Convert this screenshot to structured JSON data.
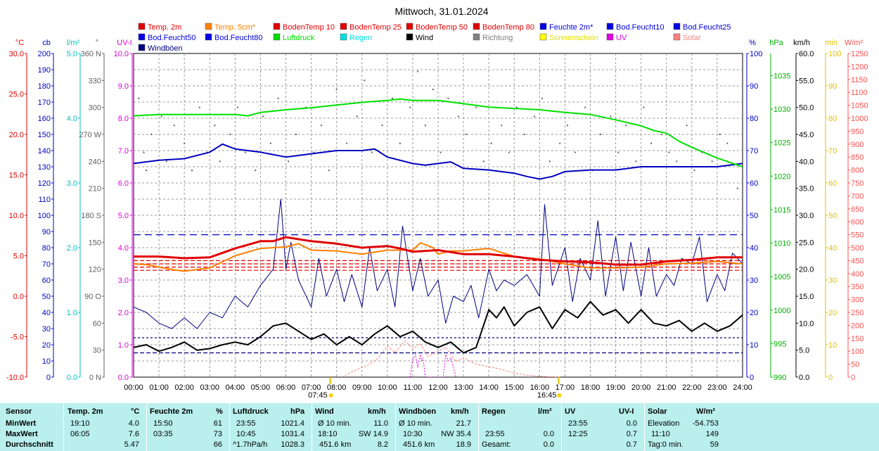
{
  "title": "Mittwoch, 31.01.2024",
  "legend": [
    {
      "label": "Temp. 2m",
      "color": "#e00000"
    },
    {
      "label": "Temp. 5cm*",
      "color": "#ff8000"
    },
    {
      "label": "BodenTemp 10",
      "color": "#e00000"
    },
    {
      "label": "BodenTemp 25",
      "color": "#e00000"
    },
    {
      "label": "BodenTemp 50",
      "color": "#e00000"
    },
    {
      "label": "BodenTemp 80",
      "color": "#e00000"
    },
    {
      "label": "Feuchte 2m*",
      "color": "#0000e0"
    },
    {
      "label": "Bod.Feucht10",
      "color": "#0000e0"
    },
    {
      "label": "Bod.Feucht25",
      "color": "#0000e0"
    },
    {
      "label": "Bod.Feucht50",
      "color": "#0000e0"
    },
    {
      "label": "Bod.Feucht80",
      "color": "#0000e0"
    },
    {
      "label": "Luftdruck",
      "color": "#00dd00"
    },
    {
      "label": "Regen",
      "color": "#00e0e0"
    },
    {
      "label": "Wind",
      "color": "#000000"
    },
    {
      "label": "Richtung",
      "color": "#808080"
    },
    {
      "label": "Sonnenschein",
      "color": "#ffff00"
    },
    {
      "label": "UV",
      "color": "#e000e0"
    },
    {
      "label": "Solar",
      "color": "#ff8080"
    },
    {
      "label": "Windböen",
      "color": "#000080"
    }
  ],
  "axes": {
    "temp": {
      "unit": "°C",
      "color": "#e00000",
      "ticks": [
        "30.0",
        "25.0",
        "20.0",
        "15.0",
        "10.0",
        "5.0",
        "0.0",
        "-5.0",
        "-10.0"
      ]
    },
    "cb": {
      "unit": "cb",
      "color": "#0000c0",
      "ticks": [
        "200",
        "190",
        "180",
        "170",
        "160",
        "150",
        "140",
        "130",
        "120",
        "110",
        "100",
        "90",
        "80",
        "70",
        "60",
        "50",
        "40",
        "30",
        "20",
        "10",
        "0"
      ]
    },
    "rain": {
      "unit": "l/m²",
      "color": "#00c0c0",
      "ticks": [
        "5.0",
        "4.0",
        "3.0",
        "2.0",
        "1.0",
        "0.0"
      ]
    },
    "dir": {
      "unit": "°",
      "color": "#606060",
      "ticks": [
        "360 N",
        "330",
        "300",
        "270 W",
        "240",
        "210",
        "180 S",
        "150",
        "120",
        "90 O",
        "60",
        "30",
        "0 N"
      ]
    },
    "uv": {
      "unit": "UV-I",
      "color": "#e000e0",
      "ticks": [
        "10.0",
        "9.0",
        "8.0",
        "7.0",
        "6.0",
        "5.0",
        "4.0",
        "3.0",
        "2.0",
        "1.0",
        "0.0"
      ]
    },
    "hum": {
      "unit": "%",
      "color": "#0000c0",
      "ticks": [
        "100",
        "90",
        "80",
        "70",
        "60",
        "50",
        "40",
        "30",
        "20",
        "10",
        "0"
      ]
    },
    "press": {
      "unit": "hPa",
      "color": "#00b000",
      "ticks": [
        "1035",
        "1030",
        "1025",
        "1020",
        "1015",
        "1010",
        "1005",
        "1000",
        "995",
        "990"
      ]
    },
    "wind": {
      "unit": "km/h",
      "color": "#000000",
      "ticks": [
        "60.0",
        "55.0",
        "50.0",
        "45.0",
        "40.0",
        "35.0",
        "30.0",
        "25.0",
        "20.0",
        "15.0",
        "10.0",
        "5.0",
        "0.0"
      ]
    },
    "min": {
      "unit": "min",
      "color": "#e0c000",
      "ticks": [
        "100",
        "90",
        "80",
        "70",
        "60",
        "50",
        "40",
        "30",
        "20",
        "10",
        "0"
      ]
    },
    "solar": {
      "unit": "W/m²",
      "color": "#ff5050",
      "ticks": [
        "1250",
        "1200",
        "1150",
        "1100",
        "1050",
        "1000",
        "950",
        "900",
        "850",
        "800",
        "750",
        "700",
        "650",
        "600",
        "550",
        "500",
        "450",
        "400",
        "350",
        "300",
        "250",
        "200",
        "150",
        "100",
        "50",
        "0"
      ]
    },
    "time": {
      "ticks": [
        "00:00",
        "01:00",
        "02:00",
        "03:00",
        "04:00",
        "05:00",
        "06:00",
        "07:00",
        "08:00",
        "09:00",
        "10:00",
        "11:00",
        "12:00",
        "13:00",
        "14:00",
        "15:00",
        "16:00",
        "17:00",
        "18:00",
        "19:00",
        "20:00",
        "21:00",
        "22:00",
        "23:00",
        "24:00"
      ]
    }
  },
  "sun": {
    "sunrise": "07:45",
    "sunset": "16:45"
  },
  "chart_data": {
    "type": "line",
    "title": "Mittwoch, 31.01.2024",
    "x_unit": "Uhrzeit",
    "xlim": [
      "00:00",
      "24:00"
    ],
    "series": [
      {
        "name": "Temp. 2m",
        "axis": "temp",
        "color": "#e00000",
        "width": 3,
        "x": [
          0,
          1,
          2,
          3,
          4,
          5,
          5.5,
          6,
          7,
          8,
          9,
          10,
          10.5,
          11,
          12,
          13,
          14,
          15,
          16,
          17,
          18,
          19,
          20,
          21,
          22,
          23,
          24
        ],
        "y": [
          4.9,
          4.9,
          4.7,
          4.8,
          5.9,
          6.8,
          6.8,
          7.3,
          6.8,
          6.5,
          6.0,
          6.2,
          5.9,
          5.5,
          5.7,
          5.2,
          5.2,
          4.9,
          4.5,
          4.3,
          4.2,
          3.9,
          3.9,
          4.3,
          4.5,
          4.8,
          4.8
        ]
      },
      {
        "name": "Temp. 5cm*",
        "axis": "temp",
        "color": "#ff8000",
        "width": 2,
        "x": [
          0,
          0.5,
          1,
          1.5,
          2,
          3,
          4,
          5,
          6,
          6.5,
          7,
          8,
          9,
          10,
          11,
          11.3,
          11.8,
          12,
          12.5,
          13,
          14,
          15,
          16,
          17,
          18,
          19,
          20,
          21,
          22,
          23,
          24
        ],
        "y": [
          4.0,
          3.9,
          3.6,
          3.3,
          3.1,
          3.5,
          5.0,
          5.9,
          6.1,
          6.5,
          5.7,
          5.6,
          5.2,
          5.7,
          5.7,
          6.6,
          6.0,
          5.2,
          5.6,
          5.6,
          5.9,
          4.9,
          4.6,
          4.0,
          3.5,
          3.5,
          3.6,
          4.0,
          4.1,
          4.3,
          4.0
        ]
      },
      {
        "name": "Luftdruck",
        "axis": "press",
        "color": "#00e000",
        "width": 2,
        "x": [
          0,
          1,
          2,
          3,
          4,
          4.5,
          5,
          6,
          7,
          8,
          9,
          10,
          10.5,
          11,
          12,
          13,
          14,
          15,
          16,
          17,
          18,
          19,
          20,
          20.5,
          21,
          21.5,
          22,
          23,
          24
        ],
        "y": [
          1029.0,
          1029.2,
          1029.2,
          1029.2,
          1029.2,
          1029.0,
          1029.5,
          1029.9,
          1030.2,
          1030.6,
          1031.0,
          1031.3,
          1031.5,
          1031.3,
          1031.3,
          1030.8,
          1030.3,
          1030.1,
          1029.9,
          1029.5,
          1029.2,
          1028.4,
          1027.5,
          1026.8,
          1026.4,
          1025.2,
          1024.3,
          1022.7,
          1021.4
        ]
      },
      {
        "name": "Feuchte 2m*",
        "axis": "hum",
        "color": "#0000c0",
        "width": 2,
        "x": [
          0,
          1,
          2,
          3,
          3.5,
          4,
          5,
          6,
          7,
          8,
          9,
          9.5,
          10,
          11,
          11.5,
          12,
          12.5,
          13,
          14,
          15,
          15.5,
          16,
          16.5,
          17,
          18,
          19,
          20,
          21,
          22,
          23,
          24
        ],
        "y": [
          66,
          67,
          67.5,
          69.5,
          72,
          70.5,
          69.5,
          68,
          69,
          70,
          70,
          70.5,
          68,
          66,
          65.5,
          66,
          66.5,
          64.5,
          64,
          63,
          62,
          61.2,
          62,
          63.5,
          64,
          64,
          65,
          65,
          65,
          65,
          66
        ]
      },
      {
        "name": "Windböen",
        "axis": "wind",
        "color": "#000080",
        "width": 1,
        "x": [
          0,
          0.5,
          1,
          1.5,
          2,
          2.5,
          3,
          3.5,
          4,
          4.5,
          5,
          5.5,
          5.8,
          6,
          6.2,
          6.5,
          7,
          7.3,
          7.6,
          8,
          8.3,
          8.6,
          9,
          9.3,
          9.6,
          10,
          10.3,
          10.6,
          11,
          11.3,
          11.6,
          12,
          12.3,
          12.6,
          13,
          13.3,
          13.6,
          14,
          14.3,
          14.6,
          15,
          15.5,
          16,
          16.2,
          16.5,
          17,
          17.3,
          17.6,
          18,
          18.3,
          18.6,
          19,
          19.3,
          19.6,
          20,
          20.3,
          20.6,
          21,
          21.3,
          21.6,
          22,
          22.3,
          22.6,
          23,
          23.3,
          23.6,
          24
        ],
        "y": [
          13,
          12,
          10,
          9,
          11,
          9,
          12,
          11,
          15,
          13,
          17,
          20,
          33,
          20,
          25,
          18,
          13,
          22,
          15,
          20,
          14,
          19,
          13,
          24,
          16,
          20,
          13,
          28,
          16,
          22,
          15,
          18,
          10,
          15,
          14,
          17,
          11,
          20,
          16,
          18,
          17,
          19,
          15,
          32,
          17,
          24,
          14,
          22,
          18,
          29,
          15,
          26,
          16,
          25,
          15,
          24,
          15,
          19,
          17,
          22,
          21,
          26,
          14,
          19,
          16,
          23,
          21
        ]
      },
      {
        "name": "Wind",
        "axis": "wind",
        "color": "#000000",
        "width": 2,
        "x": [
          0,
          0.5,
          1,
          1.5,
          2,
          2.5,
          3,
          3.5,
          4,
          4.5,
          5,
          5.5,
          6,
          6.5,
          7,
          7.5,
          8,
          8.5,
          9,
          9.5,
          10,
          10.5,
          11,
          11.5,
          12,
          12.5,
          13,
          13.5,
          14,
          14.3,
          14.6,
          15,
          15.5,
          16,
          16.5,
          17,
          17.5,
          18,
          18.5,
          19,
          19.5,
          20,
          20.5,
          21,
          21.5,
          22,
          22.5,
          23,
          23.5,
          24
        ],
        "y": [
          5.5,
          6.0,
          4.8,
          5.5,
          6.5,
          5.0,
          5.3,
          6.0,
          6.5,
          6.0,
          7.5,
          9.5,
          10.0,
          8.5,
          7.0,
          8.0,
          6.0,
          7.5,
          6.0,
          8.0,
          9.5,
          7.5,
          8.5,
          6.5,
          5.5,
          6.5,
          4.5,
          5.5,
          12.5,
          11.0,
          13.0,
          9.5,
          12.0,
          13.0,
          9.0,
          12.5,
          11.0,
          14.0,
          11.5,
          12.5,
          10.0,
          12.5,
          10.0,
          9.5,
          10.5,
          8.5,
          10.0,
          8.5,
          9.5,
          11.5
        ]
      },
      {
        "name": "Solar",
        "axis": "solar",
        "color": "#ff8080",
        "width": 1,
        "dash": "3,2",
        "x": [
          8.2,
          8.7,
          9.2,
          9.6,
          10,
          10.3,
          10.7,
          11,
          11.3,
          11.6,
          12,
          12.3,
          12.7,
          13,
          13.5,
          14,
          14.5,
          15,
          15.5,
          16,
          16.5,
          16.8
        ],
        "y": [
          0,
          25,
          45,
          70,
          120,
          95,
          140,
          110,
          130,
          80,
          100,
          115,
          60,
          75,
          50,
          40,
          30,
          15,
          8,
          3,
          1,
          0
        ]
      },
      {
        "name": "UV",
        "axis": "uv",
        "color": "#e000e0",
        "width": 1,
        "dash": "2,2",
        "x": [
          10.9,
          11.0,
          11.1,
          11.2,
          11.3,
          11.35,
          11.4,
          11.5,
          12.2,
          12.3,
          12.4,
          12.5,
          12.6,
          12.7
        ],
        "y": [
          0,
          0.55,
          0.7,
          0.3,
          0.7,
          0.5,
          0.6,
          0,
          0,
          0.7,
          0.5,
          0.6,
          0.3,
          0
        ]
      }
    ],
    "reference_lines": [
      {
        "name": "Bod.Feucht",
        "axis": "hum",
        "value": 44,
        "color": "#0000c0",
        "dash": "10,6"
      },
      {
        "name": "BodenTemp 10",
        "axis": "temp",
        "value": 4.4,
        "color": "#e00000",
        "dash": "6,3"
      },
      {
        "name": "BodenTemp 25",
        "axis": "temp",
        "value": 4.0,
        "color": "#e00000",
        "dash": "6,3"
      },
      {
        "name": "BodenTemp 50",
        "axis": "temp",
        "value": 3.6,
        "color": "#e00000",
        "dash": "6,3"
      },
      {
        "name": "BodenTemp 80",
        "axis": "temp",
        "value": 3.2,
        "color": "#e00000",
        "dash": "6,3"
      },
      {
        "name": "Wind",
        "axis": "wind",
        "value": 7.3,
        "color": "#000080",
        "dash": "3,3"
      },
      {
        "name": "Wind",
        "axis": "wind",
        "value": 4.5,
        "color": "#000080",
        "dash": "6,3"
      }
    ],
    "direction_points": {
      "name": "Richtung",
      "axis": "dir",
      "color": "#606060",
      "x": [
        0.2,
        0.4,
        0.5,
        0.7,
        1.1,
        1.3,
        1.6,
        2.0,
        2.3,
        2.6,
        2.9,
        3.2,
        3.4,
        3.8,
        4.1,
        4.4,
        4.8,
        5.1,
        5.4,
        5.7,
        6.1,
        6.4,
        6.8,
        7.1,
        7.4,
        7.7,
        8.0,
        8.4,
        8.8,
        9.1,
        9.4,
        9.8,
        10.2,
        10.5,
        10.9,
        11.2,
        11.5,
        11.8,
        12.1,
        12.4,
        12.8,
        13.1,
        13.5,
        13.8,
        14.1,
        14.5,
        14.8,
        15.1,
        15.4,
        15.8,
        16.1,
        16.4,
        16.8,
        17.1,
        17.4,
        17.8,
        18.1,
        18.4,
        18.8,
        19.1,
        19.4,
        19.8,
        20.1,
        20.4,
        20.8,
        21.1,
        21.4,
        21.8,
        22.1,
        22.4,
        22.8,
        23.1,
        23.4,
        23.8
      ],
      "y": [
        310,
        250,
        230,
        270,
        290,
        240,
        280,
        260,
        230,
        300,
        250,
        280,
        240,
        270,
        300,
        250,
        230,
        290,
        260,
        310,
        240,
        270,
        300,
        250,
        280,
        230,
        320,
        260,
        290,
        330,
        250,
        280,
        310,
        260,
        300,
        340,
        280,
        320,
        250,
        310,
        290,
        270,
        300,
        240,
        260,
        280,
        250,
        300,
        270,
        290,
        310,
        240,
        260,
        280,
        250,
        300,
        230,
        270,
        290,
        250,
        280,
        240,
        300,
        260,
        270,
        250,
        240,
        280,
        230,
        250,
        240,
        270,
        260,
        210
      ]
    }
  },
  "stats": {
    "headers": {
      "sensor": "Sensor",
      "temp": "Temp. 2m",
      "temp_unit": "°C",
      "hum": "Feuchte 2m",
      "hum_unit": "%",
      "press": "Luftdruck",
      "press_unit": "hPa",
      "wind": "Wind",
      "wind_unit": "km/h",
      "gust": "Windböen",
      "gust_unit": "km/h",
      "rain": "Regen",
      "rain_unit": "l/m²",
      "uv": "UV",
      "uv_unit": "UV-I",
      "solar": "Solar",
      "solar_unit": "W/m²"
    },
    "rows": [
      {
        "label": "MinWert",
        "temp_time": "19:10",
        "temp_val": "4.0",
        "hum_time": "15:50",
        "hum_val": "61",
        "press_time": "23:55",
        "press_val": "1021.4",
        "wind_time": "Ø 10 min.",
        "wind_val": "11.0",
        "gust_time": "Ø 10 min.",
        "gust_val": "21.7",
        "rain_time": "",
        "rain_val": "",
        "uv_time": "23:55",
        "uv_val": "0.0",
        "solar_label": "Elevation",
        "solar_val": "-54.753"
      },
      {
        "label": "MaxWert",
        "temp_time": "06:05",
        "temp_val": "7.6",
        "hum_time": "03:35",
        "hum_val": "73",
        "press_time": "10:45",
        "press_val": "1031.4",
        "wind_time": "18:10",
        "wind_dir": "SW 14.9",
        "gust_time": "10:30",
        "gust_dir": "NW 35.4",
        "rain_time": "23:55",
        "rain_val": "0.0",
        "uv_time": "12:25",
        "uv_val": "0.7",
        "solar_label": "11:10",
        "solar_val": "149"
      },
      {
        "label": "Durchschnitt",
        "temp_time": "",
        "temp_val": "5.47",
        "hum_time": "",
        "hum_val": "66",
        "press_time": "^1.7hPa/h",
        "press_val": "1028.3",
        "wind_time": "451.6 km",
        "wind_val": "8.2",
        "gust_time": "451.6 km",
        "gust_val": "18.9",
        "rain_time": "Gesamt:",
        "rain_val": "0.0",
        "uv_time": "",
        "uv_val": "0.7",
        "solar_label": "Tag:0 min.",
        "solar_val": "59"
      }
    ]
  }
}
